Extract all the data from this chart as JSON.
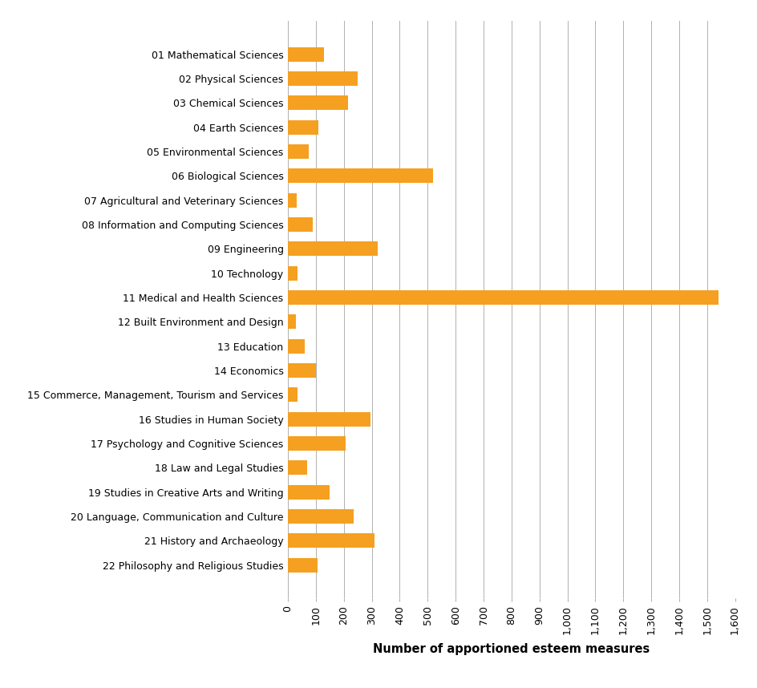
{
  "categories": [
    "01 Mathematical Sciences",
    "02 Physical Sciences",
    "03 Chemical Sciences",
    "04 Earth Sciences",
    "05 Environmental Sciences",
    "06 Biological Sciences",
    "07 Agricultural and Veterinary Sciences",
    "08 Information and Computing Sciences",
    "09 Engineering",
    "10 Technology",
    "11 Medical and Health Sciences",
    "12 Built Environment and Design",
    "13 Education",
    "14 Economics",
    "15 Commerce, Management, Tourism and Services",
    "16 Studies in Human Society",
    "17 Psychology and Cognitive Sciences",
    "18 Law and Legal Studies",
    "19 Studies in Creative Arts and Writing",
    "20 Language, Communication and Culture",
    "21 History and Archaeology",
    "22 Philosophy and Religious Studies"
  ],
  "values": [
    130,
    250,
    215,
    110,
    75,
    520,
    30,
    90,
    320,
    35,
    1540,
    28,
    60,
    100,
    35,
    295,
    205,
    70,
    150,
    235,
    310,
    105
  ],
  "bar_color": "#F5A020",
  "xlabel": "Number of apportioned esteem measures",
  "xlim": [
    0,
    1600
  ],
  "xticks": [
    0,
    100,
    200,
    300,
    400,
    500,
    600,
    700,
    800,
    900,
    1000,
    1100,
    1200,
    1300,
    1400,
    1500,
    1600
  ],
  "xtick_labels": [
    "0",
    "100",
    "200",
    "300",
    "400",
    "500",
    "600",
    "700",
    "800",
    "900",
    "1,000",
    "1,100",
    "1,200",
    "1,300",
    "1,400",
    "1,500",
    "1,600"
  ],
  "grid_color": "#b0b0b0",
  "background_color": "#ffffff",
  "bar_height": 0.6,
  "xlabel_fontsize": 10.5,
  "tick_fontsize": 9,
  "label_fontsize": 9
}
